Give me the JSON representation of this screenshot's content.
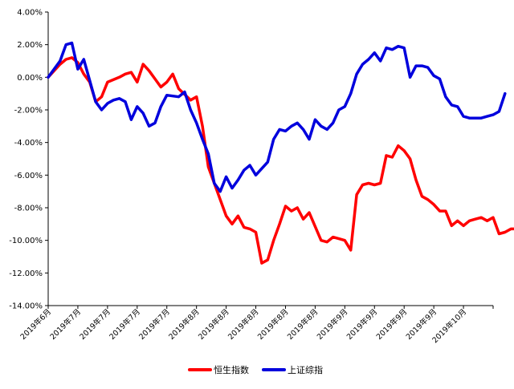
{
  "chart_data": {
    "type": "line",
    "title": "",
    "xlabel": "",
    "ylabel": "",
    "ylim": [
      -14,
      4
    ],
    "y_ticks": [
      "4.00%",
      "2.00%",
      "0.00%",
      "-2.00%",
      "-4.00%",
      "-6.00%",
      "-8.00%",
      "-10.00%",
      "-12.00%",
      "-14.00%"
    ],
    "y_tick_values": [
      4,
      2,
      0,
      -2,
      -4,
      -6,
      -8,
      -10,
      -12,
      -14
    ],
    "x_tick_labels": [
      "2019年6月",
      "2019年7月",
      "2019年7月",
      "2019年7月",
      "2019年7月",
      "2019年8月",
      "2019年8月",
      "2019年8月",
      "2019年8月",
      "2019年8月",
      "2019年9月",
      "2019年9月",
      "2019年9月",
      "2019年9月",
      "2019年10月"
    ],
    "n_points": 76,
    "grid": false,
    "legend_position": "bottom",
    "series": [
      {
        "name": "恒生指数",
        "color": "#ff0000",
        "points": [
          [
            0,
            0.0
          ],
          [
            2,
            0.8
          ],
          [
            3,
            1.1
          ],
          [
            4,
            1.2
          ],
          [
            5,
            0.9
          ],
          [
            6,
            0.2
          ],
          [
            7,
            -0.3
          ],
          [
            8,
            -1.5
          ],
          [
            9,
            -1.2
          ],
          [
            10,
            -0.3
          ],
          [
            12,
            0.0
          ],
          [
            13,
            0.2
          ],
          [
            14,
            0.3
          ],
          [
            15,
            -0.3
          ],
          [
            16,
            0.8
          ],
          [
            17,
            0.4
          ],
          [
            18,
            -0.1
          ],
          [
            19,
            -0.6
          ],
          [
            20,
            -0.3
          ],
          [
            21,
            0.2
          ],
          [
            22,
            -0.7
          ],
          [
            24,
            -1.4
          ],
          [
            25,
            -1.2
          ],
          [
            26,
            -3.0
          ],
          [
            27,
            -5.5
          ],
          [
            29,
            -7.5
          ],
          [
            30,
            -8.5
          ],
          [
            31,
            -9.0
          ],
          [
            32,
            -8.5
          ],
          [
            33,
            -9.2
          ],
          [
            34,
            -9.3
          ],
          [
            35,
            -9.5
          ],
          [
            36,
            -11.4
          ],
          [
            37,
            -11.2
          ],
          [
            38,
            -10.0
          ],
          [
            39,
            -9.0
          ],
          [
            40,
            -7.9
          ],
          [
            41,
            -8.2
          ],
          [
            42,
            -8.0
          ],
          [
            43,
            -8.7
          ],
          [
            44,
            -8.3
          ],
          [
            46,
            -10.0
          ],
          [
            47,
            -10.1
          ],
          [
            48,
            -9.8
          ],
          [
            49,
            -9.9
          ],
          [
            50,
            -10.0
          ],
          [
            51,
            -10.6
          ],
          [
            52,
            -7.2
          ],
          [
            53,
            -6.6
          ],
          [
            54,
            -6.5
          ],
          [
            55,
            -6.6
          ],
          [
            56,
            -6.5
          ],
          [
            57,
            -4.8
          ],
          [
            58,
            -4.9
          ],
          [
            59,
            -4.2
          ],
          [
            60,
            -4.5
          ],
          [
            61,
            -5.0
          ],
          [
            62,
            -6.3
          ],
          [
            63,
            -7.3
          ],
          [
            64,
            -7.5
          ],
          [
            65,
            -7.8
          ],
          [
            66,
            -8.2
          ],
          [
            67,
            -8.2
          ],
          [
            68,
            -9.1
          ],
          [
            69,
            -8.8
          ],
          [
            70,
            -9.1
          ],
          [
            71,
            -8.8
          ],
          [
            72,
            -8.7
          ],
          [
            73,
            -8.6
          ],
          [
            74,
            -8.8
          ],
          [
            75,
            -8.6
          ],
          [
            76,
            -9.6
          ],
          [
            77,
            -9.5
          ],
          [
            78,
            -9.3
          ],
          [
            79,
            -9.3
          ],
          [
            80,
            -10.0
          ],
          [
            81,
            -9.9
          ]
        ]
      },
      {
        "name": "上证综指",
        "color": "#0000dd",
        "points": [
          [
            0,
            0.0
          ],
          [
            2,
            1.0
          ],
          [
            3,
            2.0
          ],
          [
            4,
            2.1
          ],
          [
            5,
            0.5
          ],
          [
            6,
            1.1
          ],
          [
            7,
            -0.2
          ],
          [
            8,
            -1.5
          ],
          [
            9,
            -2.0
          ],
          [
            10,
            -1.6
          ],
          [
            11,
            -1.4
          ],
          [
            12,
            -1.3
          ],
          [
            13,
            -1.5
          ],
          [
            14,
            -2.6
          ],
          [
            15,
            -1.8
          ],
          [
            16,
            -2.2
          ],
          [
            17,
            -3.0
          ],
          [
            18,
            -2.8
          ],
          [
            19,
            -1.8
          ],
          [
            20,
            -1.1
          ],
          [
            22,
            -1.2
          ],
          [
            23,
            -0.9
          ],
          [
            24,
            -2.0
          ],
          [
            25,
            -2.8
          ],
          [
            26,
            -3.8
          ],
          [
            27,
            -4.7
          ],
          [
            28,
            -6.5
          ],
          [
            29,
            -7.0
          ],
          [
            30,
            -6.1
          ],
          [
            31,
            -6.8
          ],
          [
            32,
            -6.3
          ],
          [
            33,
            -5.7
          ],
          [
            34,
            -5.4
          ],
          [
            35,
            -6.0
          ],
          [
            36,
            -5.6
          ],
          [
            37,
            -5.2
          ],
          [
            38,
            -3.8
          ],
          [
            39,
            -3.2
          ],
          [
            40,
            -3.3
          ],
          [
            41,
            -3.0
          ],
          [
            42,
            -2.8
          ],
          [
            43,
            -3.2
          ],
          [
            44,
            -3.8
          ],
          [
            45,
            -2.6
          ],
          [
            46,
            -3.0
          ],
          [
            47,
            -3.2
          ],
          [
            48,
            -2.8
          ],
          [
            49,
            -2.0
          ],
          [
            50,
            -1.8
          ],
          [
            51,
            -1.0
          ],
          [
            52,
            0.2
          ],
          [
            53,
            0.8
          ],
          [
            54,
            1.1
          ],
          [
            55,
            1.5
          ],
          [
            56,
            1.0
          ],
          [
            57,
            1.8
          ],
          [
            58,
            1.7
          ],
          [
            59,
            1.9
          ],
          [
            60,
            1.8
          ],
          [
            61,
            0.0
          ],
          [
            62,
            0.7
          ],
          [
            63,
            0.7
          ],
          [
            64,
            0.6
          ],
          [
            65,
            0.1
          ],
          [
            66,
            -0.1
          ],
          [
            67,
            -1.2
          ],
          [
            68,
            -1.7
          ],
          [
            69,
            -1.8
          ],
          [
            70,
            -2.4
          ],
          [
            71,
            -2.5
          ],
          [
            72,
            -2.5
          ],
          [
            73,
            -2.5
          ],
          [
            74,
            -2.4
          ],
          [
            75,
            -2.3
          ],
          [
            76,
            -2.1
          ],
          [
            77,
            -1.0
          ]
        ]
      }
    ],
    "legend": [
      {
        "label": "恒生指数",
        "color": "#ff0000"
      },
      {
        "label": "上证综指",
        "color": "#0000dd"
      }
    ]
  }
}
